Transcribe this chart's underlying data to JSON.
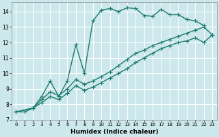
{
  "xlabel": "Humidex (Indice chaleur)",
  "bg_color": "#cce8ec",
  "grid_color": "#ffffff",
  "line_color": "#1a7a6e",
  "xlim": [
    -0.5,
    23.5
  ],
  "ylim": [
    7.0,
    14.6
  ],
  "xticks": [
    0,
    1,
    2,
    3,
    4,
    5,
    6,
    7,
    8,
    9,
    10,
    11,
    12,
    13,
    14,
    15,
    16,
    17,
    18,
    19,
    20,
    21,
    22,
    23
  ],
  "yticks": [
    7,
    8,
    9,
    10,
    11,
    12,
    13,
    14
  ],
  "line1_x": [
    0,
    1,
    2,
    3,
    4,
    5,
    6,
    7,
    8,
    9,
    10,
    11,
    12,
    13,
    14,
    15,
    16,
    17,
    18,
    19,
    20,
    21,
    22
  ],
  "line1_y": [
    7.5,
    7.5,
    7.75,
    8.5,
    9.5,
    8.5,
    9.5,
    11.85,
    10.0,
    13.4,
    14.1,
    14.2,
    14.0,
    14.25,
    14.2,
    13.75,
    13.7,
    14.15,
    13.8,
    13.8,
    13.5,
    13.4,
    13.1
  ],
  "line2_x": [
    0,
    2,
    3,
    4,
    5,
    6,
    7,
    8,
    9,
    10,
    11,
    12,
    13,
    14,
    15,
    16,
    17,
    18,
    19,
    20,
    21,
    22,
    23
  ],
  "line2_y": [
    7.5,
    7.75,
    8.3,
    8.8,
    8.55,
    9.0,
    9.6,
    9.3,
    9.5,
    9.8,
    10.1,
    10.5,
    10.9,
    11.3,
    11.5,
    11.8,
    12.0,
    12.2,
    12.4,
    12.6,
    12.8,
    13.0,
    12.5
  ],
  "line3_x": [
    0,
    2,
    3,
    4,
    5,
    6,
    7,
    8,
    9,
    10,
    11,
    12,
    13,
    14,
    15,
    16,
    17,
    18,
    19,
    20,
    21,
    22,
    23
  ],
  "line3_y": [
    7.5,
    7.75,
    8.1,
    8.5,
    8.3,
    8.7,
    9.2,
    8.9,
    9.1,
    9.4,
    9.7,
    10.0,
    10.3,
    10.7,
    11.0,
    11.3,
    11.6,
    11.8,
    12.0,
    12.1,
    12.3,
    12.0,
    12.5
  ]
}
